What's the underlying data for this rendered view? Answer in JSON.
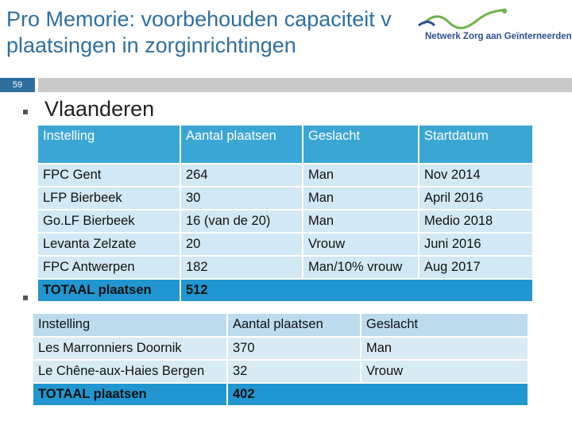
{
  "header": {
    "title_line1": "Pro Memorie: voorbehouden capaciteit v",
    "title_line2": "plaatsingen in zorginrichtingen",
    "logo": "Netwerk Zorg aan Geïnterneerden",
    "slide_number": "59"
  },
  "section1": {
    "bullet": "Vlaanderen",
    "table": {
      "header": [
        "Instelling",
        "Aantal plaatsen",
        "Geslacht",
        "Startdatum"
      ],
      "rows": [
        [
          "FPC Gent",
          "264",
          "Man",
          "Nov 2014"
        ],
        [
          "LFP Bierbeek",
          "30",
          "Man",
          "April 2016"
        ],
        [
          "Go.LF Bierbeek",
          "16 (van de 20)",
          "Man",
          "Medio 2018"
        ],
        [
          "Levanta Zelzate",
          "20",
          "Vrouw",
          "Juni 2016"
        ],
        [
          "FPC Antwerpen",
          "182",
          "Man/10% vrouw",
          "Aug 2017"
        ]
      ],
      "total": [
        "TOTAAL plaatsen",
        "512"
      ]
    }
  },
  "section2": {
    "table": {
      "header": [
        "Instelling",
        "Aantal plaatsen",
        "Geslacht"
      ],
      "rows": [
        [
          "Les Marronniers Doornik",
          "370",
          "Man"
        ],
        [
          "Le Chêne-aux-Haies Bergen",
          "32",
          "Vrouw"
        ]
      ],
      "total": [
        "TOTAAL plaatsen",
        "402"
      ]
    }
  }
}
